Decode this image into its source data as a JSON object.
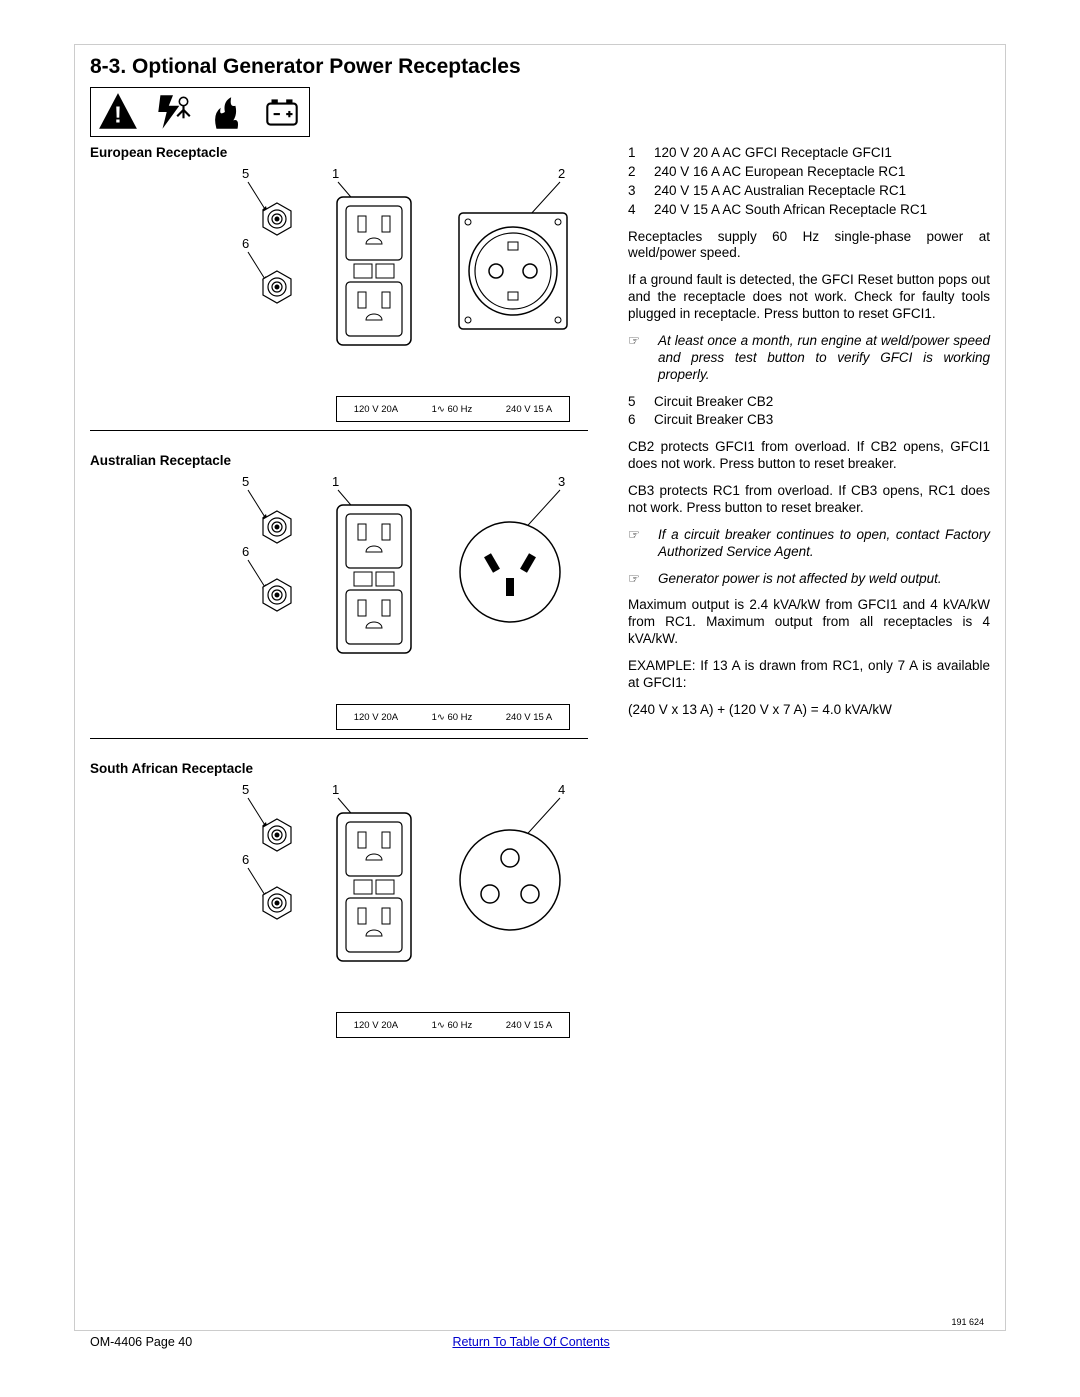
{
  "section_number": "8-3.",
  "section_title": "Optional Generator Power Receptacles",
  "receptacles": [
    {
      "title": "European Receptacle",
      "right_label_num": "2",
      "type": "european"
    },
    {
      "title": "Australian Receptacle",
      "right_label_num": "3",
      "type": "australian"
    },
    {
      "title": "South African Receptacle",
      "right_label_num": "4",
      "type": "southafrican"
    }
  ],
  "callout_left_top": "5",
  "callout_left_bot": "6",
  "callout_mid": "1",
  "rating_left": "120 V  20A",
  "rating_mid": "1∿ 60 Hz",
  "rating_right": "240 V  15 A",
  "legend": [
    {
      "n": "1",
      "t": "120 V 20 A AC GFCI Receptacle GFCI1"
    },
    {
      "n": "2",
      "t": "240 V 16 A AC European Receptacle RC1"
    },
    {
      "n": "3",
      "t": "240 V 15 A AC Australian Receptacle RC1"
    },
    {
      "n": "4",
      "t": "240 V 15 A AC South African Receptacle RC1"
    }
  ],
  "para1": "Receptacles supply 60 Hz single-phase power at weld/power speed.",
  "para2": "If a ground fault is detected, the GFCI Reset button pops out and the receptacle does not work. Check for faulty tools plugged in receptacle. Press button to reset GFCI1.",
  "note1": "At least once a month, run engine at weld/power speed and press test button to verify GFCI is working properly.",
  "legend2": [
    {
      "n": "5",
      "t": "Circuit Breaker CB2"
    },
    {
      "n": "6",
      "t": "Circuit Breaker CB3"
    }
  ],
  "para3": "CB2 protects GFCI1 from overload. If CB2 opens, GFCI1 does not work. Press button to reset breaker.",
  "para4": "CB3 protects RC1 from overload. If CB3 opens, RC1 does not work. Press button to reset breaker.",
  "note2": "If a circuit breaker continues to open, contact Factory Authorized Service Agent.",
  "note3": "Generator power is not affected by weld output.",
  "para5": "Maximum output is 2.4 kVA/kW from GFCI1 and 4 kVA/kW from RC1. Maximum output from all receptacles is 4 kVA/kW.",
  "para6": "EXAMPLE: If 13 A is drawn from RC1, only 7 A is available at GFCI1:",
  "para7": "(240 V x 13 A) + (120 V x 7 A) = 4.0 kVA/kW",
  "partnum": "191 624",
  "footer_left": "OM-4406 Page 40",
  "footer_link": "Return To Table Of Contents"
}
